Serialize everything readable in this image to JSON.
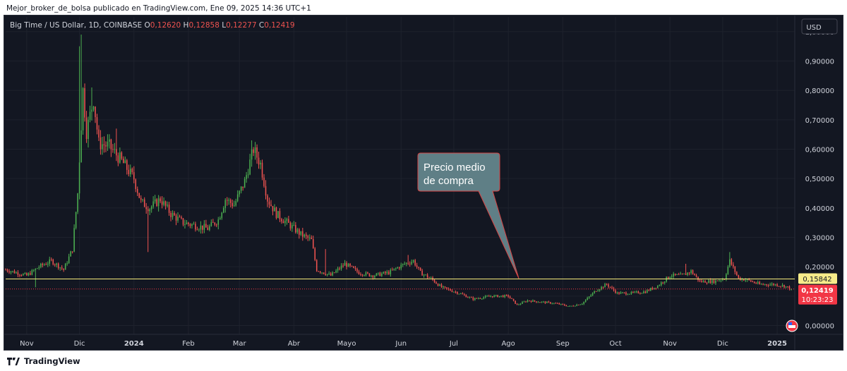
{
  "header": {
    "published_text": "Mejor_broker_de_bolsa publicado en TradingView.com, Ene 09, 2025 14:36 UTC+1"
  },
  "chart_data": {
    "type": "candlestick",
    "symbol_title": "Big Time / US Dollar, 1D, COINBASE",
    "ohlc": {
      "open_label": "O",
      "open": "0,12620",
      "high_label": "H",
      "high": "0,12858",
      "low_label": "L",
      "low": "0,12277",
      "close_label": "C",
      "close": "0,12419"
    },
    "currency_button": "USD",
    "ylim": [
      -0.03,
      1.05
    ],
    "y_ticks": [
      "1,00000",
      "0,90000",
      "0,80000",
      "0,70000",
      "0,60000",
      "0,50000",
      "0,40000",
      "0,30000",
      "0,20000",
      "0,10000",
      "0,00000"
    ],
    "y_tick_values": [
      1.0,
      0.9,
      0.8,
      0.7,
      0.6,
      0.5,
      0.4,
      0.3,
      0.2,
      0.1,
      0.0
    ],
    "x_ticks": [
      "Nov",
      "Dic",
      "2024",
      "Feb",
      "Mar",
      "Abr",
      "Mayo",
      "Jun",
      "Jul",
      "Ago",
      "Sep",
      "Oct",
      "Nov",
      "Dic",
      "2025"
    ],
    "x_ticks_bold": [
      "2024",
      "2025"
    ],
    "x_tick_dates": [
      "2023-11-01",
      "2023-12-01",
      "2024-01-01",
      "2024-02-01",
      "2024-03-01",
      "2024-04-01",
      "2024-05-01",
      "2024-06-01",
      "2024-07-01",
      "2024-08-01",
      "2024-09-01",
      "2024-10-01",
      "2024-11-01",
      "2024-12-01",
      "2025-01-01"
    ],
    "xlim": [
      "2023-10-20",
      "2025-01-09"
    ],
    "price_key_points": [
      [
        "2023-10-20",
        0.19
      ],
      [
        "2023-11-01",
        0.17
      ],
      [
        "2023-11-08",
        0.2
      ],
      [
        "2023-11-15",
        0.22
      ],
      [
        "2023-11-22",
        0.19
      ],
      [
        "2023-11-27",
        0.26
      ],
      [
        "2023-11-30",
        0.45
      ],
      [
        "2023-12-03",
        0.8
      ],
      [
        "2023-12-05",
        0.66
      ],
      [
        "2023-12-09",
        0.77
      ],
      [
        "2023-12-12",
        0.62
      ],
      [
        "2023-12-18",
        0.61
      ],
      [
        "2023-12-25",
        0.56
      ],
      [
        "2024-01-01",
        0.5
      ],
      [
        "2024-01-05",
        0.42
      ],
      [
        "2024-01-10",
        0.4
      ],
      [
        "2024-01-16",
        0.43
      ],
      [
        "2024-01-22",
        0.38
      ],
      [
        "2024-01-29",
        0.35
      ],
      [
        "2024-02-05",
        0.34
      ],
      [
        "2024-02-12",
        0.33
      ],
      [
        "2024-02-18",
        0.36
      ],
      [
        "2024-02-22",
        0.43
      ],
      [
        "2024-02-27",
        0.41
      ],
      [
        "2024-03-04",
        0.49
      ],
      [
        "2024-03-09",
        0.6
      ],
      [
        "2024-03-13",
        0.55
      ],
      [
        "2024-03-17",
        0.43
      ],
      [
        "2024-03-22",
        0.38
      ],
      [
        "2024-03-28",
        0.35
      ],
      [
        "2024-04-05",
        0.31
      ],
      [
        "2024-04-11",
        0.29
      ],
      [
        "2024-04-14",
        0.19
      ],
      [
        "2024-04-22",
        0.17
      ],
      [
        "2024-04-30",
        0.21
      ],
      [
        "2024-05-08",
        0.18
      ],
      [
        "2024-05-16",
        0.17
      ],
      [
        "2024-05-25",
        0.18
      ],
      [
        "2024-06-03",
        0.21
      ],
      [
        "2024-06-08",
        0.22
      ],
      [
        "2024-06-12",
        0.18
      ],
      [
        "2024-06-18",
        0.16
      ],
      [
        "2024-06-24",
        0.13
      ],
      [
        "2024-07-04",
        0.11
      ],
      [
        "2024-07-12",
        0.09
      ],
      [
        "2024-07-22",
        0.1
      ],
      [
        "2024-08-01",
        0.1
      ],
      [
        "2024-08-06",
        0.07
      ],
      [
        "2024-08-12",
        0.085
      ],
      [
        "2024-08-20",
        0.08
      ],
      [
        "2024-08-28",
        0.075
      ],
      [
        "2024-09-05",
        0.065
      ],
      [
        "2024-09-12",
        0.075
      ],
      [
        "2024-09-20",
        0.12
      ],
      [
        "2024-09-26",
        0.14
      ],
      [
        "2024-10-02",
        0.11
      ],
      [
        "2024-10-10",
        0.11
      ],
      [
        "2024-10-18",
        0.115
      ],
      [
        "2024-10-25",
        0.135
      ],
      [
        "2024-11-01",
        0.17
      ],
      [
        "2024-11-08",
        0.17
      ],
      [
        "2024-11-13",
        0.185
      ],
      [
        "2024-11-18",
        0.15
      ],
      [
        "2024-11-26",
        0.15
      ],
      [
        "2024-12-02",
        0.16
      ],
      [
        "2024-12-05",
        0.22
      ],
      [
        "2024-12-10",
        0.16
      ],
      [
        "2024-12-15",
        0.155
      ],
      [
        "2024-12-22",
        0.14
      ],
      [
        "2024-12-30",
        0.14
      ],
      [
        "2025-01-05",
        0.135
      ],
      [
        "2025-01-09",
        0.124
      ]
    ],
    "spikes": [
      [
        "2023-12-01",
        0.95
      ],
      [
        "2023-12-02",
        0.99
      ],
      [
        "2023-12-08",
        0.81
      ],
      [
        "2023-12-22",
        0.67
      ],
      [
        "2024-03-08",
        0.63
      ],
      [
        "2024-01-09",
        0.25
      ],
      [
        "2024-04-19",
        0.26
      ],
      [
        "2024-06-05",
        0.24
      ],
      [
        "2024-12-05",
        0.25
      ],
      [
        "2024-11-10",
        0.21
      ],
      [
        "2023-11-06",
        0.13
      ]
    ],
    "horizontal_line": {
      "value": 0.15842,
      "label": "0,15842",
      "color": "#f5eb7a"
    },
    "last_price": {
      "value": 0.12419,
      "label": "0,12419",
      "countdown": "10:23:23",
      "color": "#f23645"
    },
    "annotation": {
      "text_line1": "Precio medio",
      "text_line2": "de compra",
      "date": "2024-08-07",
      "value": 0.16
    },
    "colors": {
      "up": "#26a69a",
      "up_body": "#2e7d32",
      "down": "#ef5350",
      "bg": "#131722",
      "grid": "#1e222d"
    }
  },
  "footer": {
    "brand": "TradingView"
  }
}
